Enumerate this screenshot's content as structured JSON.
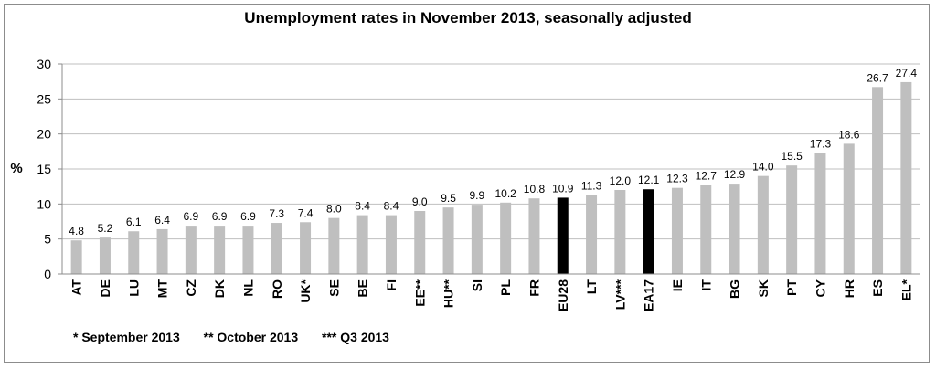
{
  "chart_data": {
    "type": "bar",
    "title": "Unemployment rates in November 2013, seasonally adjusted",
    "ylabel": "%",
    "ylim": [
      0,
      30
    ],
    "yticks": [
      0,
      5,
      10,
      15,
      20,
      25,
      30
    ],
    "grid": true,
    "categories": [
      "AT",
      "DE",
      "LU",
      "MT",
      "CZ",
      "DK",
      "NL",
      "RO",
      "UK*",
      "SE",
      "BE",
      "FI",
      "EE**",
      "HU**",
      "SI",
      "PL",
      "FR",
      "EU28",
      "LT",
      "LV***",
      "EA17",
      "IE",
      "IT",
      "BG",
      "SK",
      "PT",
      "CY",
      "HR",
      "ES",
      "EL*"
    ],
    "values": [
      4.8,
      5.2,
      6.1,
      6.4,
      6.9,
      6.9,
      6.9,
      7.3,
      7.4,
      8.0,
      8.4,
      8.4,
      9.0,
      9.5,
      9.9,
      10.2,
      10.8,
      10.9,
      11.3,
      12.0,
      12.1,
      12.3,
      12.7,
      12.9,
      14.0,
      15.5,
      17.3,
      18.6,
      26.7,
      27.4
    ],
    "value_labels": [
      "4.8",
      "5.2",
      "6.1",
      "6.4",
      "6.9",
      "6.9",
      "6.9",
      "7.3",
      "7.4",
      "8.0",
      "8.4",
      "8.4",
      "9.0",
      "9.5",
      "9.9",
      "10.2",
      "10.8",
      "10.9",
      "11.3",
      "12.0",
      "12.1",
      "12.3",
      "12.7",
      "12.9",
      "14.0",
      "15.5",
      "17.3",
      "18.6",
      "26.7",
      "27.4"
    ],
    "highlighted": [
      "EU28",
      "EA17"
    ],
    "bar_color": "#bfbfbf",
    "highlight_color": "#000000",
    "grid_color": "#bfbfbf"
  },
  "footnotes": [
    "* September 2013",
    "** October 2013",
    "*** Q3 2013"
  ]
}
